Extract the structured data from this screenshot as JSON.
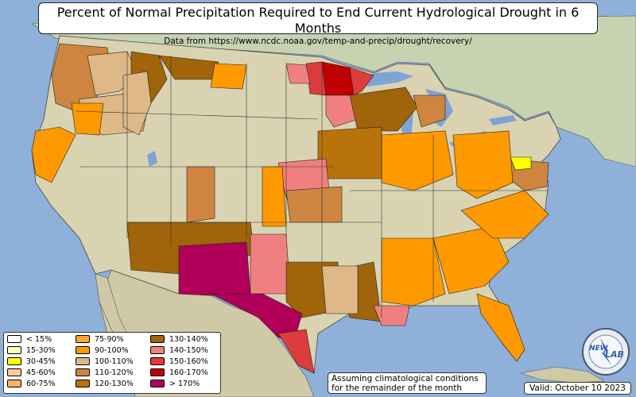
{
  "title": "Percent of Normal Precipitation Required to End Current Hydrological Drought in 6 Months",
  "subtitle": "Data from https://www.ncdc.noaa.gov/temp-and-precip/drought/recovery/",
  "note_line1": "Assuming climatological conditions",
  "note_line2": "for the remainder of the month",
  "valid": "Valid: October 10 2023",
  "logo": {
    "text_top": "NEW",
    "text_main": "LAB"
  },
  "colors": {
    "ocean": "#8fb0d9",
    "land": "#d9d3b2",
    "mexico": "#cfc9a6",
    "canada": "#c7d2b0",
    "lakes": "#7ea4d6",
    "state_border": "#333333"
  },
  "legend": [
    {
      "label": "< 15%",
      "color": "#ffffff"
    },
    {
      "label": "15-30%",
      "color": "#ffffbf"
    },
    {
      "label": "30-45%",
      "color": "#ffff00"
    },
    {
      "label": "45-60%",
      "color": "#ffcc99"
    },
    {
      "label": "60-75%",
      "color": "#ffb366"
    },
    {
      "label": "75-90%",
      "color": "#ffa533"
    },
    {
      "label": "90-100%",
      "color": "#ff9900"
    },
    {
      "label": "100-110%",
      "color": "#deb887"
    },
    {
      "label": "110-120%",
      "color": "#cd853f"
    },
    {
      "label": "120-130%",
      "color": "#b8730a"
    },
    {
      "label": "130-140%",
      "color": "#a0640a"
    },
    {
      "label": "140-150%",
      "color": "#f08080"
    },
    {
      "label": "150-160%",
      "color": "#dc3c3c"
    },
    {
      "label": "160-170%",
      "color": "#c00000"
    },
    {
      "label": "> 170%",
      "color": "#b0005a"
    }
  ]
}
